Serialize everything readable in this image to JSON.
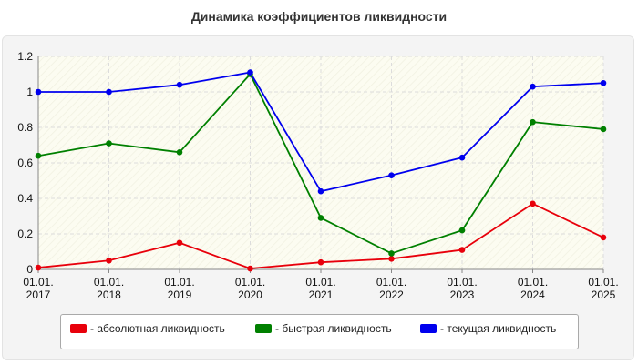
{
  "chart_data": {
    "type": "line",
    "title": "Динамика коэффициентов ликвидности",
    "categories": [
      "01.01.\n2017",
      "01.01.\n2018",
      "01.01.\n2019",
      "01.01.\n2020",
      "01.01.\n2021",
      "01.01.\n2022",
      "01.01.\n2023",
      "01.01.\n2024",
      "01.01.\n2025"
    ],
    "ylim": [
      0,
      1.2
    ],
    "yticks": [
      "0",
      "0.2",
      "0.4",
      "0.6",
      "0.8",
      "1",
      "1.2"
    ],
    "grid": true,
    "legend_position": "bottom",
    "series": [
      {
        "name": "- абсолютная ликвидность",
        "color": "#e8000b",
        "values": [
          0.01,
          0.05,
          0.15,
          0.005,
          0.04,
          0.06,
          0.11,
          0.37,
          0.18
        ]
      },
      {
        "name": "- быстрая ликвидность",
        "color": "#008000",
        "values": [
          0.64,
          0.71,
          0.66,
          1.1,
          0.29,
          0.09,
          0.22,
          0.83,
          0.79
        ]
      },
      {
        "name": "- текущая ликвидность",
        "color": "#0000ee",
        "values": [
          1.0,
          1.0,
          1.04,
          1.11,
          0.44,
          0.53,
          0.63,
          1.03,
          1.05
        ]
      }
    ]
  }
}
